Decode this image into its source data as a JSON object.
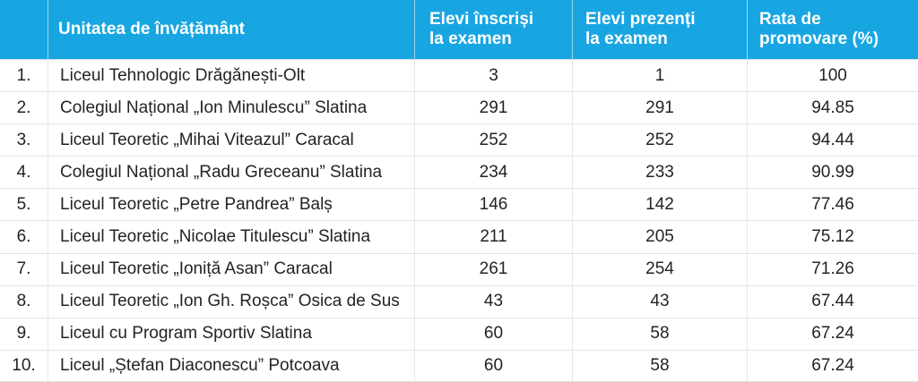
{
  "colors": {
    "header_bg": "#18a6e2",
    "header_text": "#ffffff",
    "body_text": "#232323",
    "row_divider": "#e2e2e2",
    "header_divider": "rgba(255,255,255,0.55)"
  },
  "table": {
    "columns": [
      {
        "key": "index",
        "label": ""
      },
      {
        "key": "name",
        "label": "Unitatea de învățământ"
      },
      {
        "key": "enrolled",
        "label": "Elevi înscriși\nla examen"
      },
      {
        "key": "present",
        "label": "Elevi prezenți\nla examen"
      },
      {
        "key": "rate",
        "label": "Rata de\npromovare (%)"
      }
    ],
    "rows": [
      {
        "index": "1.",
        "name": "Liceul Tehnologic Drăgănești-Olt",
        "enrolled": "3",
        "present": "1",
        "rate": "100"
      },
      {
        "index": "2.",
        "name": "Colegiul Național „Ion Minulescu” Slatina",
        "enrolled": "291",
        "present": "291",
        "rate": "94.85"
      },
      {
        "index": "3.",
        "name": "Liceul Teoretic „Mihai Viteazul” Caracal",
        "enrolled": "252",
        "present": "252",
        "rate": "94.44"
      },
      {
        "index": "4.",
        "name": "Colegiul Național „Radu Greceanu” Slatina",
        "enrolled": "234",
        "present": "233",
        "rate": "90.99"
      },
      {
        "index": "5.",
        "name": "Liceul Teoretic „Petre Pandrea” Balș",
        "enrolled": "146",
        "present": "142",
        "rate": "77.46"
      },
      {
        "index": "6.",
        "name": "Liceul Teoretic „Nicolae Titulescu” Slatina",
        "enrolled": "211",
        "present": "205",
        "rate": "75.12"
      },
      {
        "index": "7.",
        "name": "Liceul Teoretic „Ioniță Asan” Caracal",
        "enrolled": "261",
        "present": "254",
        "rate": "71.26"
      },
      {
        "index": "8.",
        "name": "Liceul Teoretic „Ion Gh. Roșca” Osica de Sus",
        "enrolled": "43",
        "present": "43",
        "rate": "67.44"
      },
      {
        "index": "9.",
        "name": "Liceul cu Program Sportiv Slatina",
        "enrolled": "60",
        "present": "58",
        "rate": "67.24"
      },
      {
        "index": "10.",
        "name": "Liceul „Ștefan Diaconescu” Potcoava",
        "enrolled": "60",
        "present": "58",
        "rate": "67.24"
      }
    ]
  },
  "chart_data": {
    "type": "table",
    "columns": [
      "#",
      "Unitatea de învățământ",
      "Elevi înscriși la examen",
      "Elevi prezenți la examen",
      "Rata de promovare (%)"
    ],
    "rows": [
      [
        1,
        "Liceul Tehnologic Drăgănești-Olt",
        3,
        1,
        100
      ],
      [
        2,
        "Colegiul Național „Ion Minulescu” Slatina",
        291,
        291,
        94.85
      ],
      [
        3,
        "Liceul Teoretic „Mihai Viteazul” Caracal",
        252,
        252,
        94.44
      ],
      [
        4,
        "Colegiul Național „Radu Greceanu” Slatina",
        234,
        233,
        90.99
      ],
      [
        5,
        "Liceul Teoretic „Petre Pandrea” Balș",
        146,
        142,
        77.46
      ],
      [
        6,
        "Liceul Teoretic „Nicolae Titulescu” Slatina",
        211,
        205,
        75.12
      ],
      [
        7,
        "Liceul Teoretic „Ioniță Asan” Caracal",
        261,
        254,
        71.26
      ],
      [
        8,
        "Liceul Teoretic „Ion Gh. Roșca” Osica de Sus",
        43,
        43,
        67.44
      ],
      [
        9,
        "Liceul cu Program Sportiv Slatina",
        60,
        58,
        67.24
      ],
      [
        10,
        "Liceul „Ștefan Diaconescu” Potcoava",
        60,
        58,
        67.24
      ]
    ]
  }
}
